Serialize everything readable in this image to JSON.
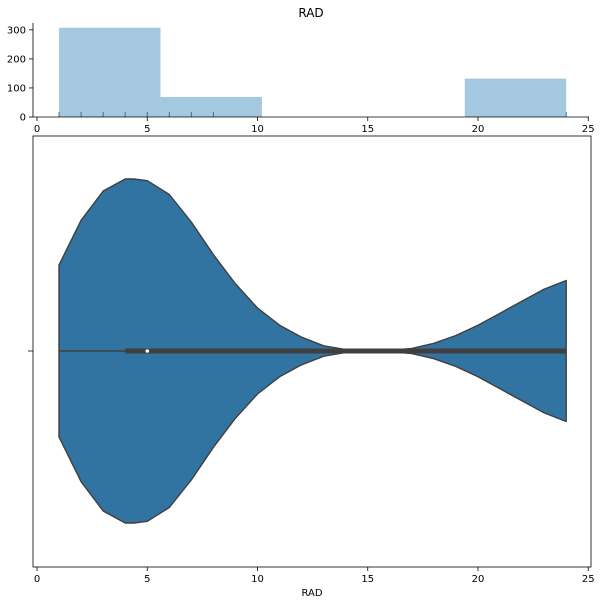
{
  "chart_data": [
    {
      "type": "histogram",
      "title": "RAD",
      "xlim": [
        -0.2,
        25.2
      ],
      "ylim": [
        0,
        320
      ],
      "x_ticks": [
        0,
        5,
        10,
        15,
        20,
        25
      ],
      "y_ticks": [
        0,
        100,
        200,
        300
      ],
      "bins": [
        {
          "x0": 1.0,
          "x1": 5.6,
          "count": 307
        },
        {
          "x0": 5.6,
          "x1": 10.2,
          "count": 69
        },
        {
          "x0": 10.2,
          "x1": 14.8,
          "count": 0
        },
        {
          "x0": 14.8,
          "x1": 19.4,
          "count": 0
        },
        {
          "x0": 19.4,
          "x1": 24.0,
          "count": 132
        }
      ],
      "rug": [
        1,
        2,
        3,
        4,
        5,
        6,
        7,
        8,
        24
      ],
      "color": "#a5c8e1",
      "rug_color": "#3a6e9e"
    },
    {
      "type": "violin",
      "xlabel": "RAD",
      "xlim": [
        -0.2,
        25.2
      ],
      "x_ticks": [
        0,
        5,
        10,
        15,
        20,
        25
      ],
      "min": 1,
      "q1": 4,
      "median": 5,
      "q3": 24,
      "max": 24,
      "density": [
        [
          1.0,
          0.5
        ],
        [
          2.0,
          0.76
        ],
        [
          3.0,
          0.93
        ],
        [
          4.0,
          1.0
        ],
        [
          4.4,
          1.0
        ],
        [
          5.0,
          0.99
        ],
        [
          6.0,
          0.91
        ],
        [
          7.0,
          0.75
        ],
        [
          8.0,
          0.56
        ],
        [
          9.0,
          0.39
        ],
        [
          10.0,
          0.25
        ],
        [
          11.0,
          0.15
        ],
        [
          12.0,
          0.08
        ],
        [
          13.0,
          0.03
        ],
        [
          14.0,
          0.008
        ],
        [
          15.0,
          0.002
        ],
        [
          16.0,
          0.004
        ],
        [
          17.0,
          0.015
        ],
        [
          18.0,
          0.045
        ],
        [
          19.0,
          0.09
        ],
        [
          20.0,
          0.15
        ],
        [
          21.0,
          0.22
        ],
        [
          22.0,
          0.29
        ],
        [
          23.0,
          0.36
        ],
        [
          24.0,
          0.41
        ]
      ],
      "fill_color": "#3274a1",
      "line_color": "#3f3f3f"
    }
  ]
}
